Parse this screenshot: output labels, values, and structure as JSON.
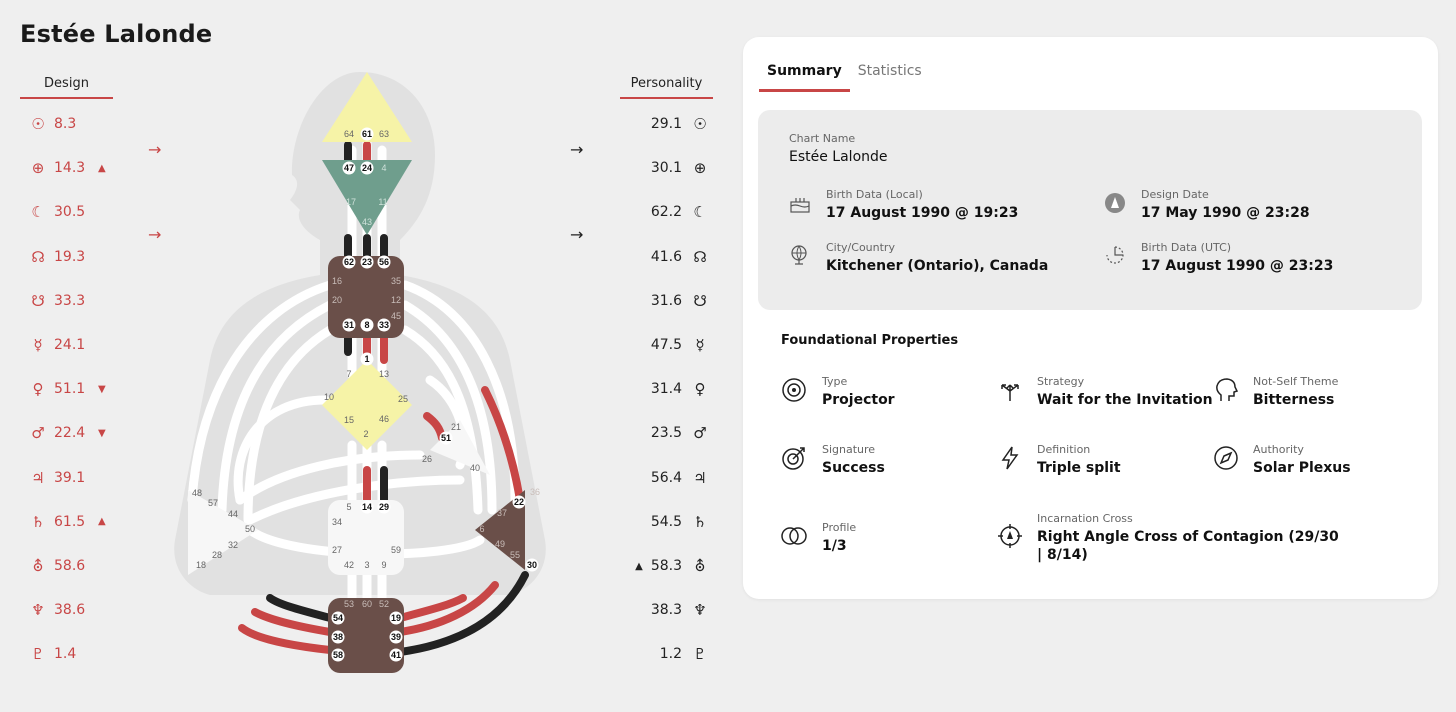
{
  "title": "Estée Lalonde",
  "columns": {
    "design": "Design",
    "personality": "Personality"
  },
  "planets": [
    {
      "icon": "sun-icon",
      "glyph": "☉",
      "design": "8.3",
      "design_mark": "",
      "personality": "29.1",
      "personality_mark": ""
    },
    {
      "icon": "earth-icon",
      "glyph": "⊕",
      "design": "14.3",
      "design_mark": "▲",
      "personality": "30.1",
      "personality_mark": ""
    },
    {
      "icon": "moon-icon",
      "glyph": "☾",
      "design": "30.5",
      "design_mark": "",
      "personality": "62.2",
      "personality_mark": ""
    },
    {
      "icon": "north-node-icon",
      "glyph": "☊",
      "design": "19.3",
      "design_mark": "",
      "personality": "41.6",
      "personality_mark": ""
    },
    {
      "icon": "south-node-icon",
      "glyph": "☋",
      "design": "33.3",
      "design_mark": "",
      "personality": "31.6",
      "personality_mark": ""
    },
    {
      "icon": "mercury-icon",
      "glyph": "☿",
      "design": "24.1",
      "design_mark": "",
      "personality": "47.5",
      "personality_mark": ""
    },
    {
      "icon": "venus-icon",
      "glyph": "♀",
      "design": "51.1",
      "design_mark": "▼",
      "personality": "31.4",
      "personality_mark": ""
    },
    {
      "icon": "mars-icon",
      "glyph": "♂",
      "design": "22.4",
      "design_mark": "▼",
      "personality": "23.5",
      "personality_mark": ""
    },
    {
      "icon": "jupiter-icon",
      "glyph": "♃",
      "design": "39.1",
      "design_mark": "",
      "personality": "56.4",
      "personality_mark": ""
    },
    {
      "icon": "saturn-icon",
      "glyph": "♄",
      "design": "61.5",
      "design_mark": "▲",
      "personality": "54.5",
      "personality_mark": ""
    },
    {
      "icon": "uranus-icon",
      "glyph": "⛢",
      "design": "58.6",
      "design_mark": "",
      "personality": "58.3",
      "personality_mark": "▲"
    },
    {
      "icon": "neptune-icon",
      "glyph": "♆",
      "design": "38.6",
      "design_mark": "",
      "personality": "38.3",
      "personality_mark": ""
    },
    {
      "icon": "pluto-icon",
      "glyph": "♇",
      "design": "1.4",
      "design_mark": "",
      "personality": "1.2",
      "personality_mark": ""
    }
  ],
  "arrows": {
    "right": "→"
  },
  "colors": {
    "accent": "#c84646",
    "head": "#f6f3a7",
    "ajna": "#6f9e8d",
    "motor": "#6a4f49",
    "open": "#f7f7f7"
  },
  "bodygraph": {
    "head": [
      "64",
      "61",
      "63"
    ],
    "ajna": [
      "47",
      "24",
      "4",
      "17",
      "11",
      "43"
    ],
    "throat": [
      "62",
      "23",
      "56",
      "16",
      "35",
      "20",
      "12",
      "45",
      "31",
      "8",
      "33"
    ],
    "g": [
      "1",
      "7",
      "13",
      "10",
      "25",
      "15",
      "46",
      "2"
    ],
    "ego": [
      "21",
      "51",
      "26",
      "40"
    ],
    "sacral": [
      "5",
      "14",
      "29",
      "34",
      "27",
      "59",
      "42",
      "3",
      "9"
    ],
    "spleen": [
      "48",
      "57",
      "44",
      "50",
      "32",
      "28",
      "18"
    ],
    "solar": [
      "36",
      "22",
      "37",
      "6",
      "49",
      "55",
      "30"
    ],
    "root": [
      "53",
      "60",
      "52",
      "54",
      "19",
      "38",
      "39",
      "58",
      "41"
    ]
  },
  "card": {
    "tabs": [
      {
        "label": "Summary"
      },
      {
        "label": "Statistics"
      }
    ],
    "chart_name": {
      "label": "Chart Name",
      "value": "Estée Lalonde"
    },
    "birth_local": {
      "label": "Birth Data (Local)",
      "value": "17 August 1990 @ 19:23",
      "icon": "birthday-cake-icon"
    },
    "design_date": {
      "label": "Design Date",
      "value": "17 May 1990 @ 23:28",
      "icon": "design-date-icon"
    },
    "city": {
      "label": "City/Country",
      "value": "Kitchener (Ontario), Canada",
      "icon": "globe-icon"
    },
    "birth_utc": {
      "label": "Birth Data (UTC)",
      "value": "17 August 1990 @ 23:23",
      "icon": "utc-clock-icon"
    },
    "foundational_title": "Foundational Properties",
    "props": [
      {
        "label": "Type",
        "value": "Projector",
        "icon": "projector-type-icon"
      },
      {
        "label": "Strategy",
        "value": "Wait for the Invitation",
        "icon": "strategy-arrows-icon"
      },
      {
        "label": "Not-Self Theme",
        "value": "Bitterness",
        "icon": "head-profile-icon"
      },
      {
        "label": "Signature",
        "value": "Success",
        "icon": "target-icon"
      },
      {
        "label": "Definition",
        "value": "Triple split",
        "icon": "lightning-icon"
      },
      {
        "label": "Authority",
        "value": "Solar Plexus",
        "icon": "compass-icon"
      },
      {
        "label": "Profile",
        "value": "1/3",
        "icon": "overlapping-circles-icon"
      },
      {
        "label": "Incarnation Cross",
        "value": "Right Angle Cross of Contagion (29/30",
        "value2": "| 8/14)",
        "icon": "crosshair-icon"
      }
    ]
  }
}
